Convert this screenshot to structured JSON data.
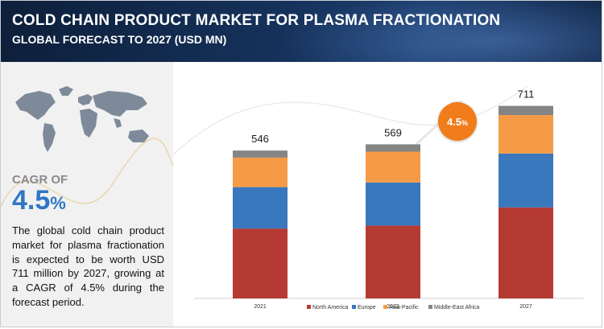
{
  "header": {
    "title": "COLD CHAIN PRODUCT MARKET FOR PLASMA FRACTIONATION",
    "subtitle": "GLOBAL FORECAST TO 2027 (USD MN)"
  },
  "left_panel": {
    "map_icon": "world-map-icon",
    "cagr_label": "CAGR OF",
    "cagr_value": "4.5",
    "cagr_unit": "%",
    "description": "The global cold chain product market for plasma fractionation is expected to be worth USD 711 million by 2027, growing at a CAGR of 4.5% during the forecast period."
  },
  "badge": {
    "value": "4.5",
    "unit": "%"
  },
  "colors": {
    "North America": "#b53a33",
    "Europe": "#3a78bd",
    "Asia-Pacific": "#f59b45",
    "Middle-East Africa": "#858585",
    "header_bg": "#15315a",
    "accent": "#2e77c4",
    "badge": "#f07c1c"
  },
  "chart_data": {
    "type": "bar",
    "stacked": true,
    "title": "COLD CHAIN PRODUCT MARKET FOR PLASMA FRACTIONATION",
    "subtitle": "GLOBAL FORECAST TO 2027 (USD MN)",
    "categories": [
      "2021",
      "2022",
      "2027"
    ],
    "totals": [
      546,
      569,
      711
    ],
    "series": [
      {
        "name": "North America",
        "values": [
          258,
          269,
          336
        ]
      },
      {
        "name": "Europe",
        "values": [
          153,
          159,
          199
        ]
      },
      {
        "name": "Asia-Pacific",
        "values": [
          109,
          114,
          142
        ]
      },
      {
        "name": "Middle-East Africa",
        "values": [
          26,
          27,
          34
        ]
      }
    ],
    "annotation": "4.5%",
    "legend_position": "bottom",
    "grid": false,
    "ylim": [
      0,
      790
    ]
  }
}
